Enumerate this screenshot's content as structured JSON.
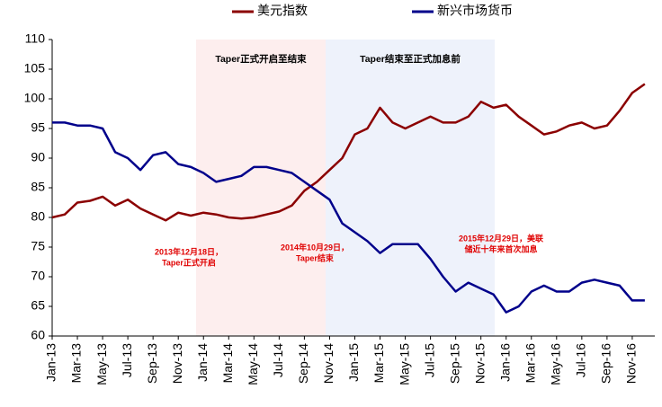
{
  "chart_data": {
    "type": "line",
    "categories": [
      "Jan-13",
      null,
      "Mar-13",
      null,
      "May-13",
      null,
      "Jul-13",
      null,
      "Sep-13",
      null,
      "Nov-13",
      null,
      "Jan-14",
      null,
      "Mar-14",
      null,
      "May-14",
      null,
      "Jul-14",
      null,
      "Sep-14",
      null,
      "Nov-14",
      null,
      "Jan-15",
      null,
      "Mar-15",
      null,
      "May-15",
      null,
      "Jul-15",
      null,
      "Sep-15",
      null,
      "Nov-15",
      null,
      "Jan-16",
      null,
      "Mar-16",
      null,
      "May-16",
      null,
      "Jul-16",
      null,
      "Sep-16",
      null,
      "Nov-16",
      null
    ],
    "series": [
      {
        "name": "美元指数",
        "color": "#8b0000",
        "values": [
          80,
          80.5,
          82.5,
          82.8,
          83.5,
          82,
          83,
          81.5,
          80.5,
          79.5,
          80.8,
          80.3,
          80.8,
          80.5,
          80,
          79.8,
          80,
          80.5,
          81,
          82,
          84.5,
          86,
          88,
          90,
          94,
          95,
          98.5,
          96,
          95,
          96,
          97,
          96,
          96,
          97,
          99.5,
          98.5,
          99,
          97,
          95.5,
          94,
          94.5,
          95.5,
          96,
          95,
          95.5,
          98,
          101,
          102.5
        ]
      },
      {
        "name": "新兴市场货币",
        "color": "#00008b",
        "values": [
          96,
          96,
          95.5,
          95.5,
          95,
          91,
          90,
          88,
          90.5,
          91,
          89,
          88.5,
          87.5,
          86,
          86.5,
          87,
          88.5,
          88.5,
          88,
          87.5,
          86,
          84.5,
          83,
          79,
          77.5,
          76,
          74,
          75.5,
          75.5,
          75.5,
          73,
          70,
          67.5,
          69,
          68,
          67,
          64,
          65,
          67.5,
          68.5,
          67.5,
          67.5,
          69,
          69.5,
          69,
          68.5,
          66,
          66
        ]
      }
    ],
    "ylim": [
      60,
      110
    ],
    "yticks": [
      60,
      65,
      70,
      75,
      80,
      85,
      90,
      95,
      100,
      105,
      110
    ],
    "regions": [
      {
        "label": "Taper正式开启至结束",
        "color": "#fdeeee"
      },
      {
        "label": "Taper结束至正式加息前",
        "color": "#eef2fb"
      }
    ],
    "annotations": [
      {
        "lines": [
          "2013年12月18日，",
          "Taper正式开启"
        ]
      },
      {
        "lines": [
          "2014年10月29日，",
          "Taper结束"
        ]
      },
      {
        "lines": [
          "2015年12月29日，美联",
          "储近十年来首次加息"
        ]
      }
    ]
  }
}
